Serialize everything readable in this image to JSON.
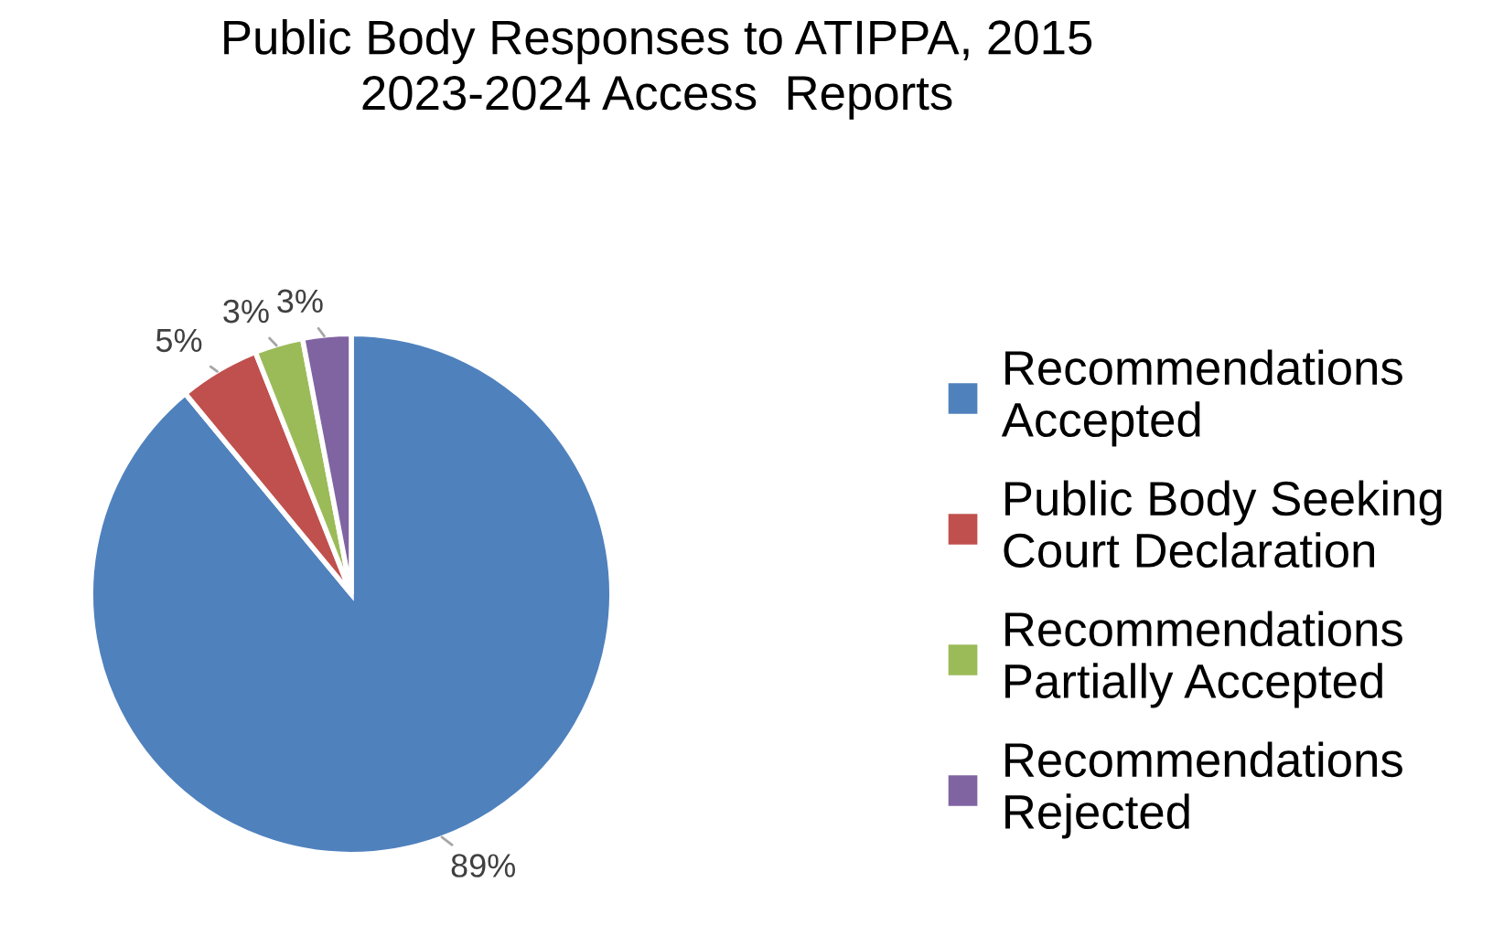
{
  "chart_data": {
    "type": "pie",
    "title": "Public Body Responses to ATIPPA, 2015",
    "subtitle": "2023-2024 Access  Reports",
    "categories": [
      "Recommendations Accepted",
      "Public Body Seeking Court Declaration",
      "Recommendations Partially Accepted",
      "Recommendations Rejected"
    ],
    "values": [
      89,
      5,
      3,
      3
    ],
    "colors": [
      "#4f81bd",
      "#c0504d",
      "#9bbb59",
      "#8064a2"
    ],
    "value_labels": [
      "89%",
      "5%",
      "3%",
      "3%"
    ],
    "legend": "right"
  }
}
